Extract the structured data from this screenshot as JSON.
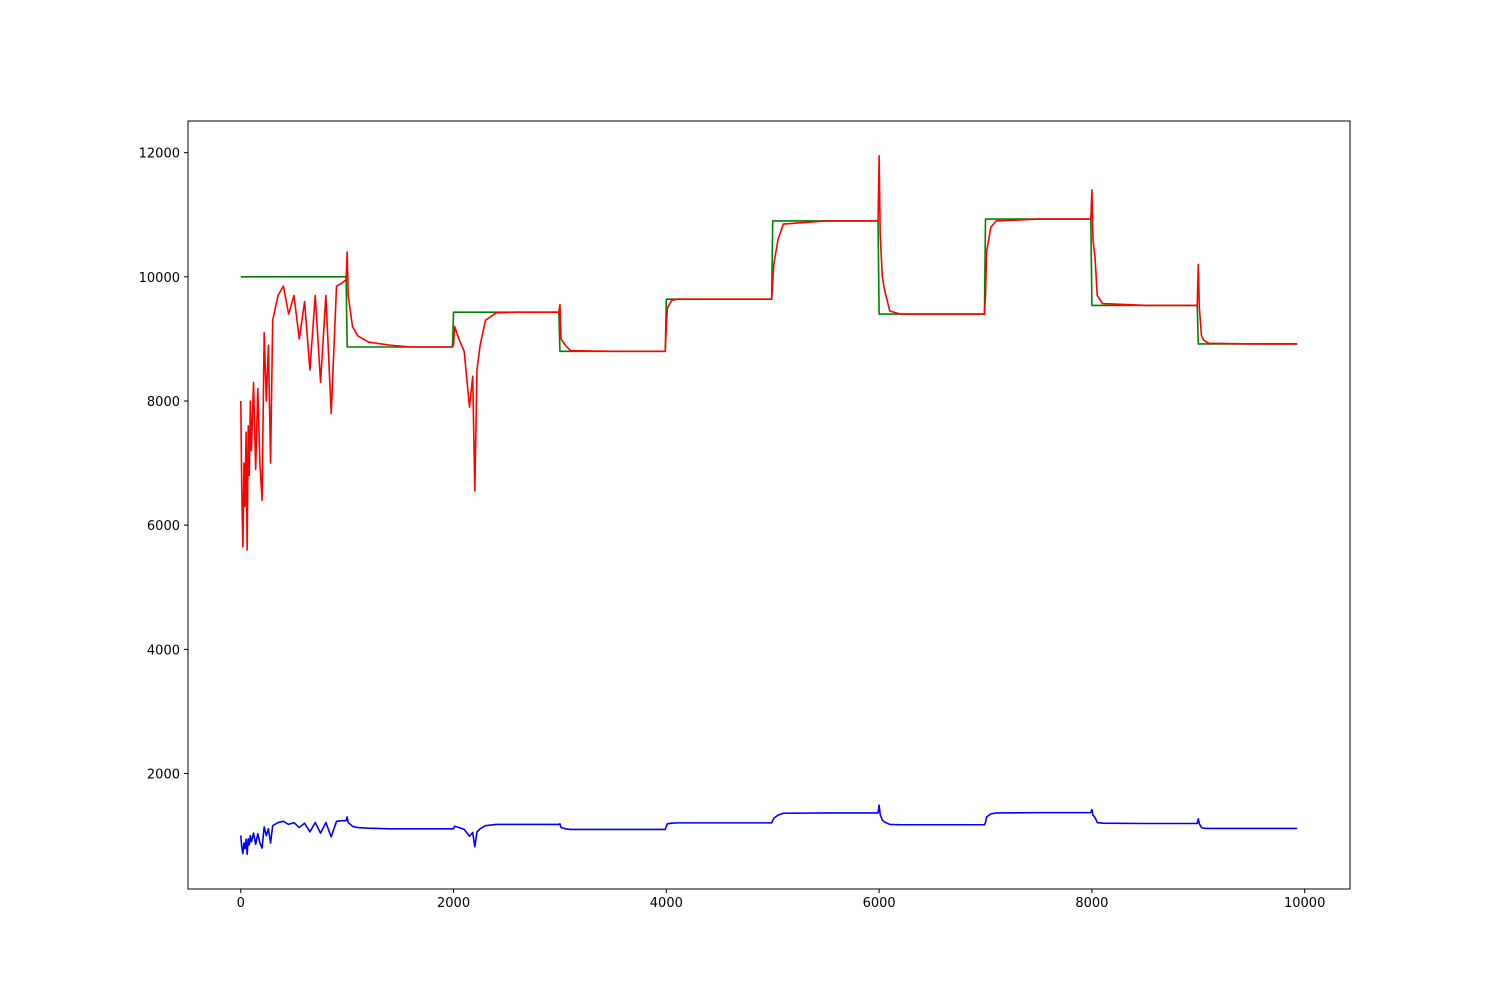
{
  "chart_data": {
    "type": "line",
    "x": [
      0,
      10,
      20,
      30,
      40,
      50,
      60,
      70,
      80,
      90,
      100,
      120,
      140,
      160,
      180,
      200,
      220,
      240,
      260,
      280,
      300,
      350,
      400,
      450,
      500,
      550,
      600,
      650,
      700,
      750,
      800,
      850,
      900,
      950,
      990,
      1000,
      1010,
      1050,
      1100,
      1200,
      1400,
      1600,
      1800,
      1990,
      2000,
      2010,
      2050,
      2100,
      2150,
      2180,
      2200,
      2220,
      2250,
      2300,
      2400,
      2600,
      2800,
      2990,
      3000,
      3010,
      3050,
      3100,
      3500,
      3990,
      4000,
      4010,
      4050,
      4100,
      4500,
      4990,
      5000,
      5010,
      5050,
      5100,
      5500,
      5990,
      6000,
      6010,
      6030,
      6050,
      6100,
      6200,
      6500,
      6990,
      7000,
      7010,
      7050,
      7100,
      7500,
      7990,
      8000,
      8010,
      8030,
      8050,
      8100,
      8500,
      8990,
      9000,
      9010,
      9030,
      9050,
      9100,
      9500,
      9930
    ],
    "series": [
      {
        "color": "#0000ff",
        "values": [
          1000,
          810,
          710,
          880,
          790,
          940,
          700,
          950,
          850,
          1000,
          900,
          1040,
          860,
          1030,
          880,
          800,
          1140,
          1000,
          1110,
          880,
          1160,
          1210,
          1230,
          1180,
          1210,
          1130,
          1200,
          1060,
          1210,
          1040,
          1210,
          980,
          1230,
          1240,
          1240,
          1300,
          1210,
          1150,
          1130,
          1120,
          1110,
          1110,
          1110,
          1110,
          1110,
          1150,
          1130,
          1100,
          990,
          1050,
          820,
          1060,
          1110,
          1160,
          1180,
          1180,
          1180,
          1180,
          1190,
          1130,
          1110,
          1100,
          1100,
          1100,
          1150,
          1190,
          1200,
          1205,
          1205,
          1205,
          1240,
          1280,
          1330,
          1360,
          1365,
          1365,
          1490,
          1340,
          1250,
          1220,
          1180,
          1175,
          1175,
          1175,
          1210,
          1300,
          1350,
          1365,
          1370,
          1370,
          1420,
          1330,
          1290,
          1210,
          1200,
          1195,
          1195,
          1270,
          1190,
          1130,
          1120,
          1115,
          1115,
          1115
        ]
      },
      {
        "color": "#008000",
        "values": [
          10000,
          10000,
          10000,
          10000,
          10000,
          10000,
          10000,
          10000,
          10000,
          10000,
          10000,
          10000,
          10000,
          10000,
          10000,
          10000,
          10000,
          10000,
          10000,
          10000,
          10000,
          10000,
          10000,
          10000,
          10000,
          10000,
          10000,
          10000,
          10000,
          10000,
          10000,
          10000,
          10000,
          10000,
          10000,
          8870,
          8870,
          8870,
          8870,
          8870,
          8870,
          8870,
          8870,
          8870,
          9430,
          9430,
          9430,
          9430,
          9430,
          9430,
          9430,
          9430,
          9430,
          9430,
          9430,
          9430,
          9430,
          9430,
          8800,
          8800,
          8800,
          8800,
          8800,
          8800,
          9640,
          9640,
          9640,
          9640,
          9640,
          9640,
          10900,
          10900,
          10900,
          10900,
          10900,
          10900,
          9400,
          9400,
          9400,
          9400,
          9400,
          9400,
          9400,
          9400,
          10930,
          10930,
          10930,
          10930,
          10930,
          10930,
          9540,
          9540,
          9540,
          9540,
          9540,
          9540,
          9540,
          8920,
          8920,
          8920,
          8920,
          8920,
          8920,
          8920
        ]
      },
      {
        "color": "#ff0000",
        "values": [
          8000,
          6500,
          5650,
          7000,
          6300,
          7500,
          5600,
          7600,
          6800,
          8000,
          7200,
          8300,
          6900,
          8200,
          7000,
          6400,
          9100,
          8000,
          8900,
          7000,
          9300,
          9700,
          9850,
          9400,
          9700,
          9000,
          9600,
          8500,
          9700,
          8300,
          9700,
          7800,
          9850,
          9900,
          9950,
          10400,
          9700,
          9200,
          9050,
          8950,
          8900,
          8870,
          8870,
          8870,
          8900,
          9200,
          9000,
          8800,
          7900,
          8400,
          6550,
          8500,
          8900,
          9300,
          9420,
          9430,
          9430,
          9430,
          9550,
          9000,
          8900,
          8810,
          8800,
          8800,
          9200,
          9500,
          9620,
          9640,
          9640,
          9640,
          9900,
          10200,
          10600,
          10850,
          10900,
          10900,
          11950,
          10700,
          10000,
          9800,
          9450,
          9400,
          9400,
          9400,
          9700,
          10400,
          10800,
          10900,
          10930,
          10930,
          11400,
          10600,
          10300,
          9700,
          9570,
          9540,
          9540,
          10200,
          9500,
          9050,
          8980,
          8930,
          8920,
          8920
        ]
      }
    ],
    "xlim": [
      -496,
      10426
    ],
    "ylim": [
      140,
      12510
    ],
    "xticks": [
      0,
      2000,
      4000,
      6000,
      8000,
      10000
    ],
    "yticks": [
      2000,
      4000,
      6000,
      8000,
      10000,
      12000
    ]
  }
}
